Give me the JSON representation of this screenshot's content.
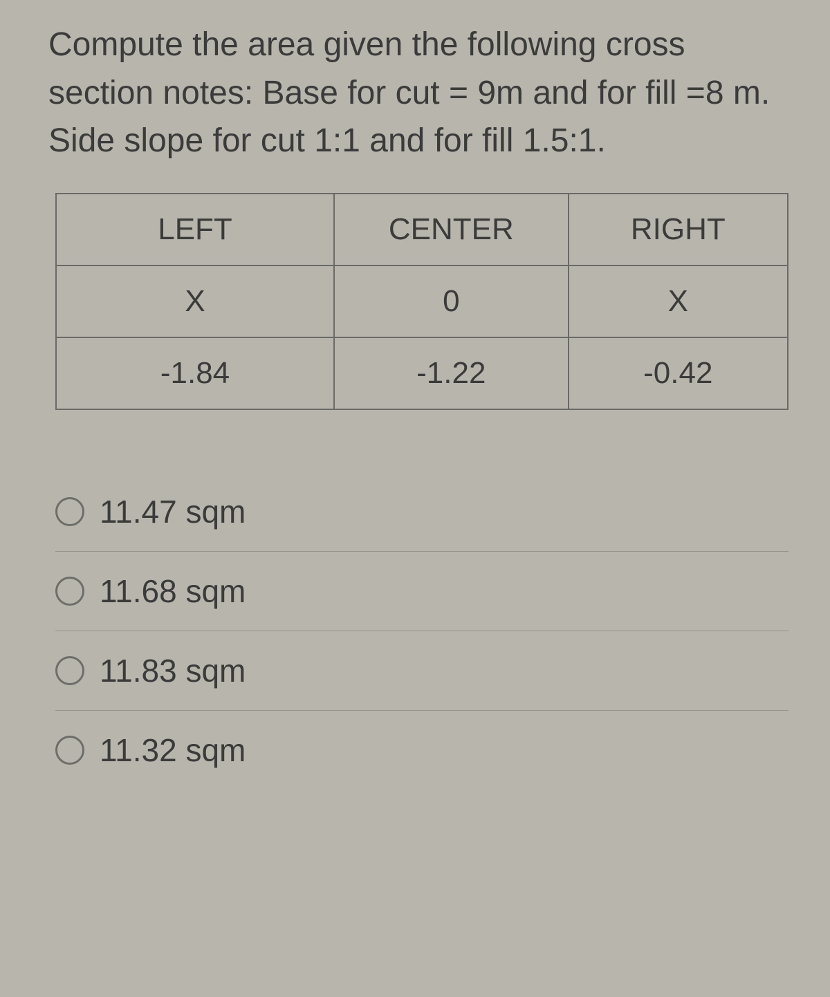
{
  "question": {
    "text": "Compute the area given the following cross section notes: Base for cut = 9m and for fill =8 m. Side slope for cut 1:1 and for fill 1.5:1."
  },
  "table": {
    "columns": [
      "LEFT",
      "CENTER",
      "RIGHT"
    ],
    "rows": [
      [
        "X",
        "0",
        "X"
      ],
      [
        "-1.84",
        "-1.22",
        "-0.42"
      ]
    ],
    "border_color": "#6a6a66",
    "font_size_pt": 33
  },
  "options": [
    {
      "label": "11.47 sqm"
    },
    {
      "label": "11.68 sqm"
    },
    {
      "label": "11.83 sqm"
    },
    {
      "label": "11.32 sqm"
    }
  ],
  "styling": {
    "background_color": "#b8b5ad",
    "text_color": "#3b3b3a",
    "question_font_size_pt": 36,
    "option_font_size_pt": 34,
    "radio_border_color": "#6e6e69",
    "divider_color": "rgba(80,80,75,0.35)"
  }
}
